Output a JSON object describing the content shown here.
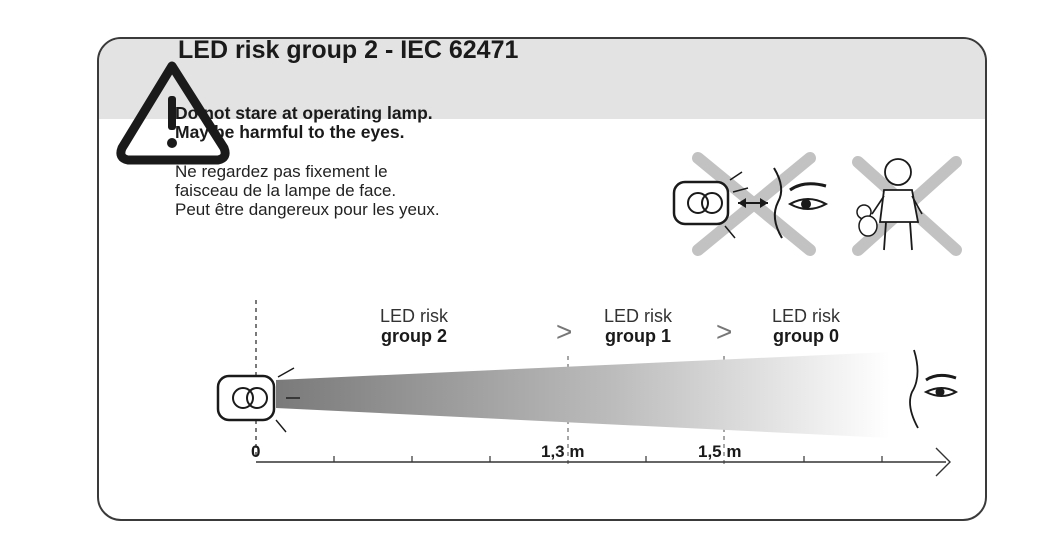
{
  "header": {
    "title": "LED risk group 2 - IEC 62471"
  },
  "warning": {
    "english": [
      "Do not stare at operating lamp.",
      "May be harmful to the eyes."
    ],
    "french": [
      "Ne regardez pas fixement le",
      "faisceau de la lampe de face.",
      "Peut être dangereux pour les yeux."
    ]
  },
  "icons": {
    "warning": "warning-triangle-icon",
    "lamp_eye_prohibited": "lamp-to-eye-prohibited-icon",
    "child_prohibited": "child-prohibited-icon",
    "headlamp": "headlamp-icon",
    "eye": "eye-icon"
  },
  "zones": [
    {
      "line1": "LED risk",
      "line2": "group 2"
    },
    {
      "line1": "LED risk",
      "line2": "group 1"
    },
    {
      "line1": "LED risk",
      "line2": "group 0"
    }
  ],
  "separator": ">",
  "axis": {
    "ticks": [
      "0",
      "1,3 m",
      "1,5 m"
    ]
  },
  "colors": {
    "header_bg": "#e3e3e3",
    "border": "#3a3a3a",
    "cross": "#bdbdbd",
    "beam": "#8a8a8a"
  }
}
